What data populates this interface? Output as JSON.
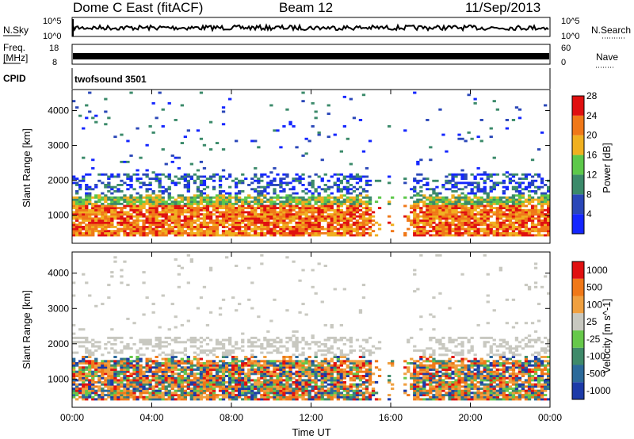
{
  "header": {
    "station": "Dome C East (fitACF)",
    "beam": "Beam 12",
    "date": "11/Sep/2013"
  },
  "nsky_panel": {
    "label": "N.Sky",
    "ytick_top": "10^5",
    "ytick_bottom": "10^0",
    "right_label": "N.Search",
    "right_tick_top": "10^5",
    "right_tick_bottom": "10^0"
  },
  "freq_panel": {
    "label_line1": "Freq.",
    "label_line2": "[MHz]",
    "ytick_top": "18",
    "ytick_bottom": "8",
    "right_label": "Nave",
    "right_tick_top": "60",
    "right_tick_bottom": "0"
  },
  "cpid_panel": {
    "label": "CPID",
    "value": "twofsound 3501"
  },
  "chart_data": [
    {
      "type": "heatmap",
      "quantity": "Power",
      "ylabel": "Slant Range [km]",
      "ylim": [
        200,
        4600
      ],
      "yticks": [
        "1000",
        "2000",
        "3000",
        "4000"
      ],
      "colorbar_label": "Power [dB]",
      "colorbar_ticks": [
        "4",
        "8",
        "12",
        "16",
        "20",
        "24",
        "28"
      ],
      "colorbar_range": [
        0,
        32
      ],
      "colors": [
        "#1426ff",
        "#2a47b8",
        "#3b8a6a",
        "#5dc84a",
        "#f0b020",
        "#f07818",
        "#e01010"
      ]
    },
    {
      "type": "heatmap",
      "quantity": "Velocity",
      "ylabel": "Slant Range [km]",
      "ylim": [
        200,
        4600
      ],
      "yticks": [
        "1000",
        "2000",
        "3000",
        "4000"
      ],
      "xlabel": "Time UT",
      "xticks": [
        "00:00",
        "04:00",
        "08:00",
        "12:00",
        "16:00",
        "20:00",
        "00:00"
      ],
      "colorbar_label": "Velocity [m s^-1]",
      "colorbar_ticks": [
        "1000",
        "500",
        "100",
        "25",
        "-25",
        "-100",
        "-500",
        "-1000"
      ],
      "colors": [
        "#1c3aa8",
        "#2c6a9a",
        "#3f8a6a",
        "#66c84a",
        "#c8c8c0",
        "#f0a040",
        "#f07818",
        "#e01010"
      ]
    }
  ]
}
